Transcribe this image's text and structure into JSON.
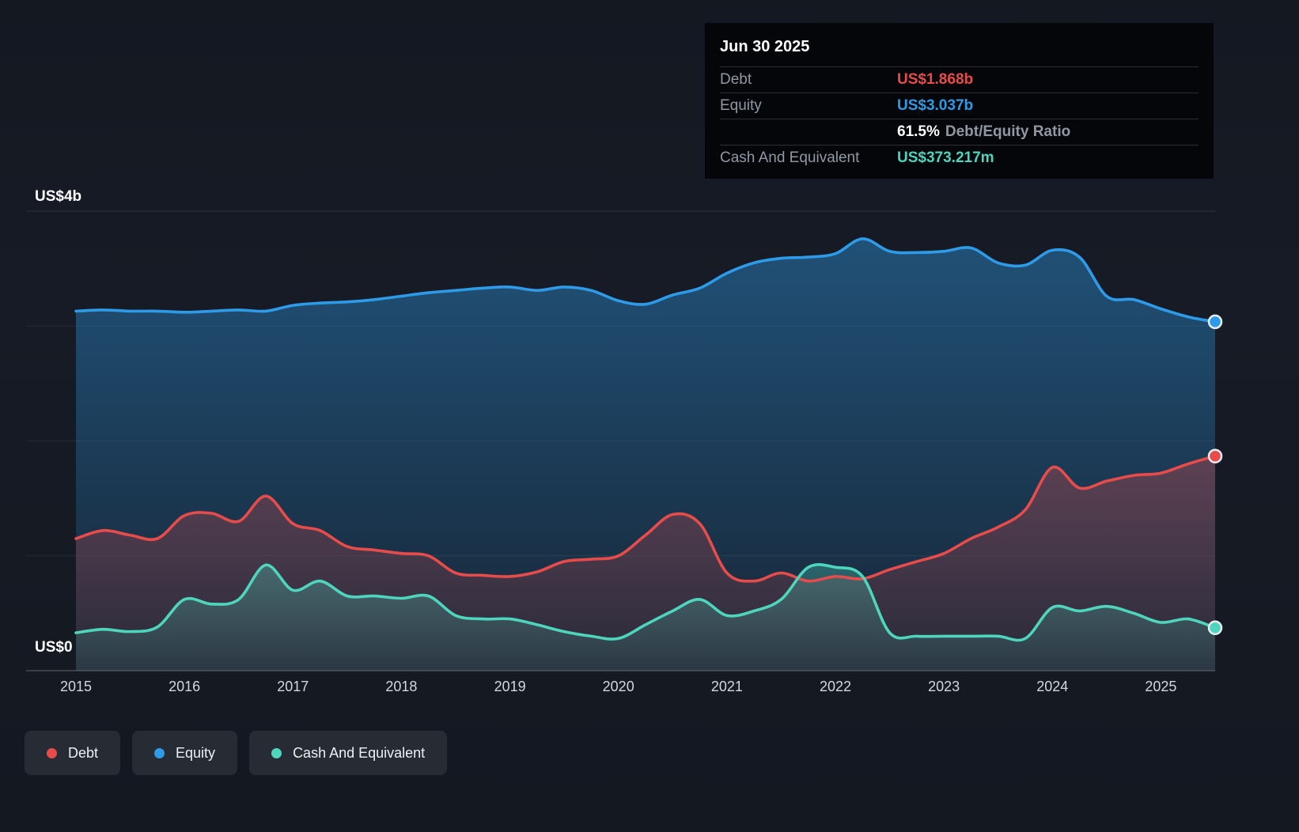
{
  "tooltip": {
    "date": "Jun 30 2025",
    "debt_label": "Debt",
    "debt_value": "US$1.868b",
    "equity_label": "Equity",
    "equity_value": "US$3.037b",
    "ratio_value": "61.5%",
    "ratio_label": "Debt/Equity Ratio",
    "cash_label": "Cash And Equivalent",
    "cash_value": "US$373.217m"
  },
  "colors": {
    "debt": "#e84c4a",
    "equity": "#2e9be8",
    "cash": "#4ed5bd",
    "grid": "#232a36",
    "grid_top": "#2c3440",
    "axis": "#454d5b",
    "background": "#161b25"
  },
  "y_axis": {
    "top_label": "US$4b",
    "bottom_label": "US$0"
  },
  "x_axis": {
    "ticks": [
      "2015",
      "2016",
      "2017",
      "2018",
      "2019",
      "2020",
      "2021",
      "2022",
      "2023",
      "2024",
      "2025"
    ]
  },
  "legend": {
    "items": [
      {
        "label": "Debt",
        "color": "#e84c4a"
      },
      {
        "label": "Equity",
        "color": "#2e9be8"
      },
      {
        "label": "Cash And Equivalent",
        "color": "#4ed5bd"
      }
    ]
  },
  "chart_data": {
    "type": "area",
    "title": "",
    "unit": "US$ billions",
    "ylim": [
      0,
      4
    ],
    "y_gridlines": [
      0,
      1,
      2,
      3,
      4
    ],
    "x_tick_years": [
      2015,
      2016,
      2017,
      2018,
      2019,
      2020,
      2021,
      2022,
      2023,
      2024,
      2025
    ],
    "grid": true,
    "legend_position": "bottom",
    "x": [
      2015,
      2015.25,
      2015.5,
      2015.75,
      2016,
      2016.25,
      2016.5,
      2016.75,
      2017,
      2017.25,
      2017.5,
      2017.75,
      2018,
      2018.25,
      2018.5,
      2018.75,
      2019,
      2019.25,
      2019.5,
      2019.75,
      2020,
      2020.25,
      2020.5,
      2020.75,
      2021,
      2021.25,
      2021.5,
      2021.75,
      2022,
      2022.25,
      2022.5,
      2022.75,
      2023,
      2023.25,
      2023.5,
      2023.75,
      2024,
      2024.25,
      2024.5,
      2024.75,
      2025,
      2025.25,
      2025.5
    ],
    "series": [
      {
        "name": "Equity",
        "color": "#2e9be8",
        "values": [
          3.13,
          3.14,
          3.13,
          3.13,
          3.12,
          3.13,
          3.14,
          3.13,
          3.18,
          3.2,
          3.21,
          3.23,
          3.26,
          3.29,
          3.31,
          3.33,
          3.34,
          3.31,
          3.34,
          3.31,
          3.22,
          3.19,
          3.27,
          3.33,
          3.46,
          3.55,
          3.59,
          3.6,
          3.63,
          3.76,
          3.65,
          3.64,
          3.65,
          3.68,
          3.55,
          3.53,
          3.66,
          3.6,
          3.26,
          3.23,
          3.15,
          3.08,
          3.037
        ]
      },
      {
        "name": "Debt",
        "color": "#e84c4a",
        "values": [
          1.15,
          1.22,
          1.18,
          1.15,
          1.35,
          1.37,
          1.3,
          1.52,
          1.28,
          1.22,
          1.08,
          1.05,
          1.02,
          1.0,
          0.85,
          0.83,
          0.82,
          0.86,
          0.95,
          0.97,
          1.0,
          1.18,
          1.36,
          1.28,
          0.85,
          0.78,
          0.85,
          0.78,
          0.82,
          0.8,
          0.88,
          0.95,
          1.02,
          1.15,
          1.25,
          1.4,
          1.77,
          1.59,
          1.65,
          1.7,
          1.72,
          1.8,
          1.868
        ]
      },
      {
        "name": "Cash And Equivalent",
        "color": "#4ed5bd",
        "values": [
          0.33,
          0.36,
          0.34,
          0.38,
          0.62,
          0.58,
          0.62,
          0.92,
          0.7,
          0.78,
          0.65,
          0.65,
          0.63,
          0.65,
          0.48,
          0.45,
          0.45,
          0.4,
          0.34,
          0.3,
          0.28,
          0.4,
          0.52,
          0.62,
          0.48,
          0.52,
          0.62,
          0.9,
          0.9,
          0.82,
          0.33,
          0.3,
          0.3,
          0.3,
          0.3,
          0.28,
          0.55,
          0.52,
          0.56,
          0.5,
          0.42,
          0.45,
          0.373
        ]
      }
    ]
  }
}
